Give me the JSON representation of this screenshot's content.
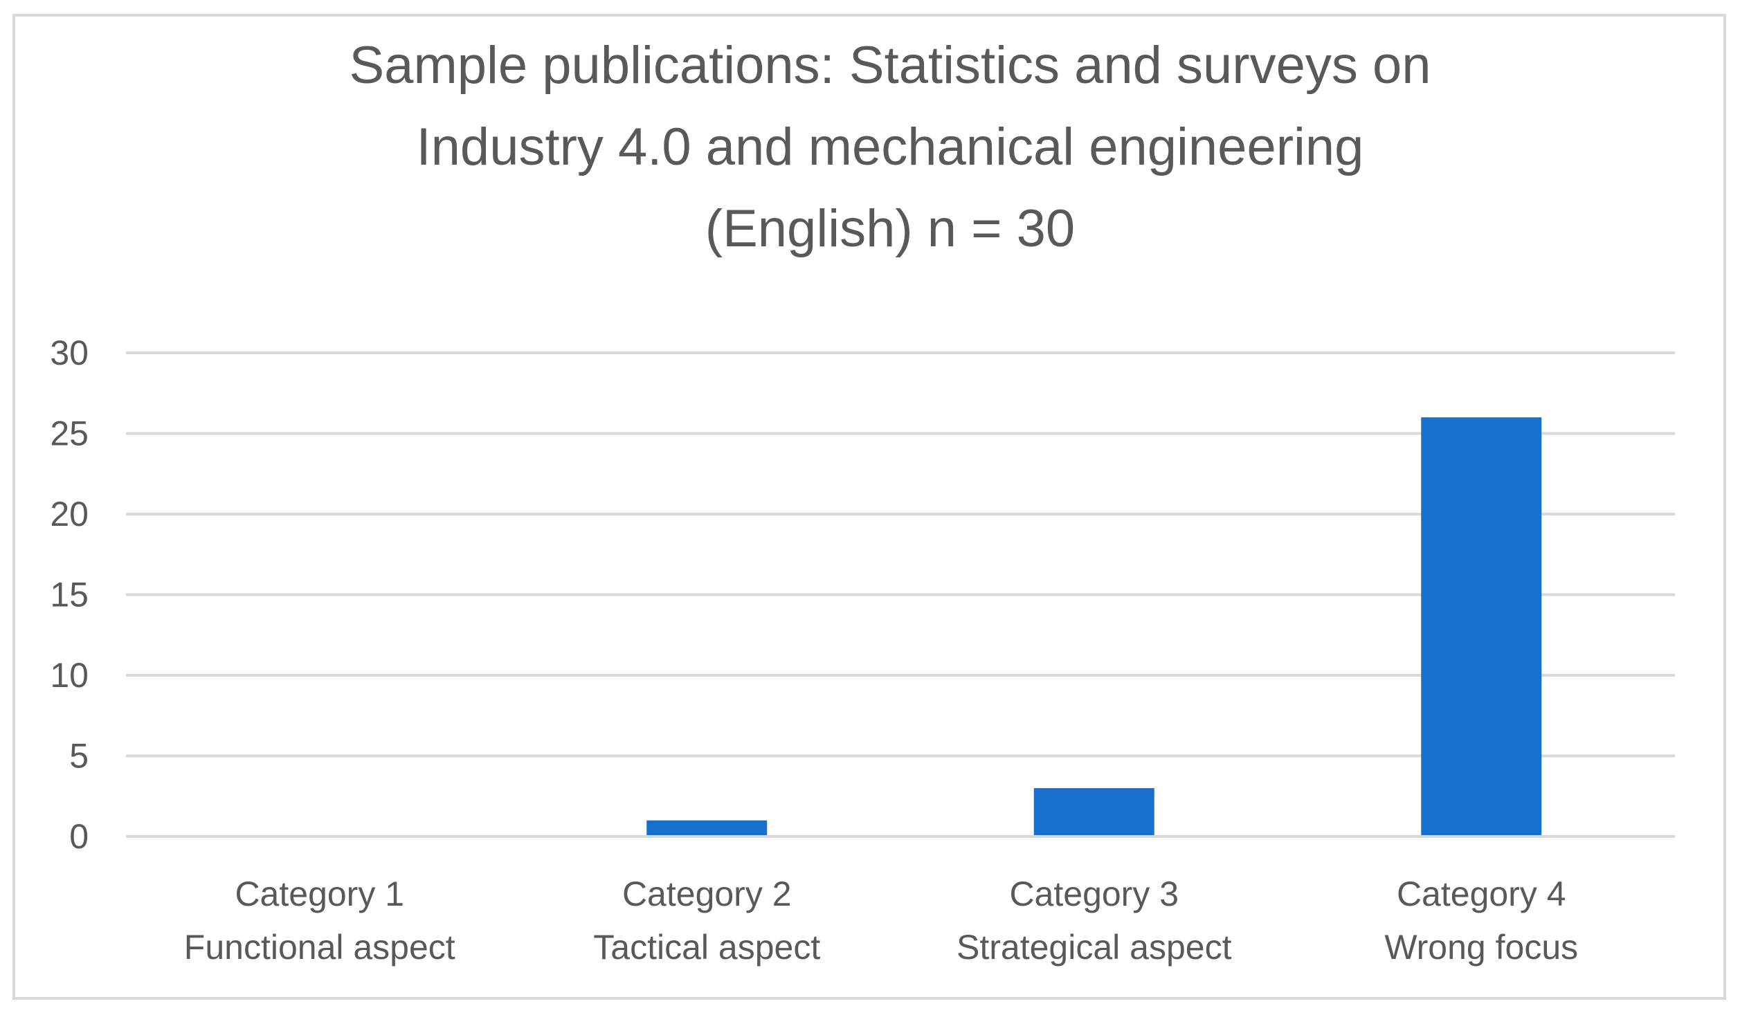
{
  "chart_data": {
    "type": "bar",
    "title_lines": [
      "Sample publications: Statistics and surveys on",
      "Industry 4.0 and mechanical engineering",
      "(English) n = 30"
    ],
    "categories": [
      [
        "Category 1",
        "Functional aspect"
      ],
      [
        "Category 2",
        "Tactical aspect"
      ],
      [
        "Category 3",
        "Strategical aspect"
      ],
      [
        "Category 4",
        "Wrong focus"
      ]
    ],
    "values": [
      0,
      1,
      3,
      26
    ],
    "ylim": [
      0,
      30
    ],
    "yticks": [
      "0",
      "5",
      "10",
      "15",
      "20",
      "25",
      "30"
    ],
    "grid": true,
    "legend": "none",
    "colors": {
      "bar": "#1770CC",
      "grid": "#D9D9D9",
      "text": "#595959",
      "frame": "#D9D9D9"
    }
  }
}
